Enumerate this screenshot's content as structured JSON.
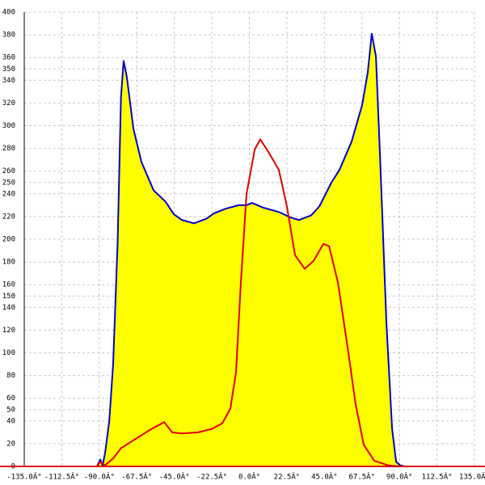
{
  "chart_data": {
    "type": "area-line",
    "xlim": [
      -135,
      135
    ],
    "xticks": [
      {
        "value": -135,
        "label": "-135.0Â°"
      },
      {
        "value": -112.5,
        "label": "-112.5Â°"
      },
      {
        "value": -90,
        "label": "-90.0Â°"
      },
      {
        "value": -67.5,
        "label": "-67.5Â°"
      },
      {
        "value": -45,
        "label": "-45.0Â°"
      },
      {
        "value": -22.5,
        "label": "-22.5Â°"
      },
      {
        "value": 0,
        "label": "0.0Â°"
      },
      {
        "value": 22.5,
        "label": "22.5Â°"
      },
      {
        "value": 45,
        "label": "45.0Â°"
      },
      {
        "value": 67.5,
        "label": "67.5Â°"
      },
      {
        "value": 90,
        "label": "90.0Â°"
      },
      {
        "value": 112.5,
        "label": "112.5Â°"
      },
      {
        "value": 135,
        "label": "135.0Â°"
      }
    ],
    "ylim": [
      0,
      400
    ],
    "yticks": [
      0,
      20,
      40,
      50,
      60,
      80,
      100,
      120,
      140,
      150,
      160,
      180,
      200,
      220,
      240,
      250,
      260,
      280,
      300,
      320,
      340,
      350,
      360,
      380,
      400
    ],
    "grid": true,
    "series": [
      {
        "color": "#0000cc",
        "fill": "#ffff00",
        "x": [
          -91.4,
          -89.4,
          -88,
          -86.5,
          -84,
          -81.7,
          -79,
          -77,
          -75.4,
          -73.5,
          -69.5,
          -64.7,
          -57.4,
          -50.2,
          -45.3,
          -40.5,
          -33.2,
          -25.9,
          -21,
          -14,
          -6.5,
          -1.7,
          1.7,
          8,
          17.7,
          25,
          29.8,
          37,
          42,
          49.2,
          54,
          61.3,
          67.6,
          71,
          73.4,
          75.9,
          78.3,
          82.2,
          85.6,
          88,
          90.4,
          92.8
        ],
        "values": [
          0,
          6,
          1,
          12,
          40,
          90,
          197,
          325,
          357,
          343,
          297,
          268,
          243,
          233,
          222,
          217,
          214,
          218,
          223,
          227,
          230,
          230,
          232,
          228,
          224,
          219,
          217,
          221,
          229,
          250,
          261,
          286,
          318,
          347,
          381,
          361,
          275,
          126,
          33,
          4,
          1,
          0
        ]
      },
      {
        "color": "#dd0000",
        "x": [
          -91.4,
          -89.4,
          -86.5,
          -81.7,
          -77,
          -69.5,
          -59.8,
          -51.1,
          -46.3,
          -40.5,
          -30.7,
          -22.5,
          -16.2,
          -11.4,
          -8,
          -5.1,
          -1.7,
          3.2,
          6.5,
          11.4,
          17.7,
          22.5,
          27.4,
          33.2,
          38.5,
          44.4,
          47.8,
          53.1,
          58.9,
          63.7,
          68.6,
          74.9,
          83,
          90.4
        ],
        "values": [
          0,
          4,
          1,
          7,
          16,
          23,
          32,
          39,
          30,
          29,
          30,
          33,
          38,
          51,
          83,
          162,
          240,
          279,
          288,
          277,
          261,
          229,
          186,
          174,
          181,
          196,
          194,
          162,
          105,
          55,
          19,
          5,
          1,
          0
        ]
      }
    ]
  }
}
